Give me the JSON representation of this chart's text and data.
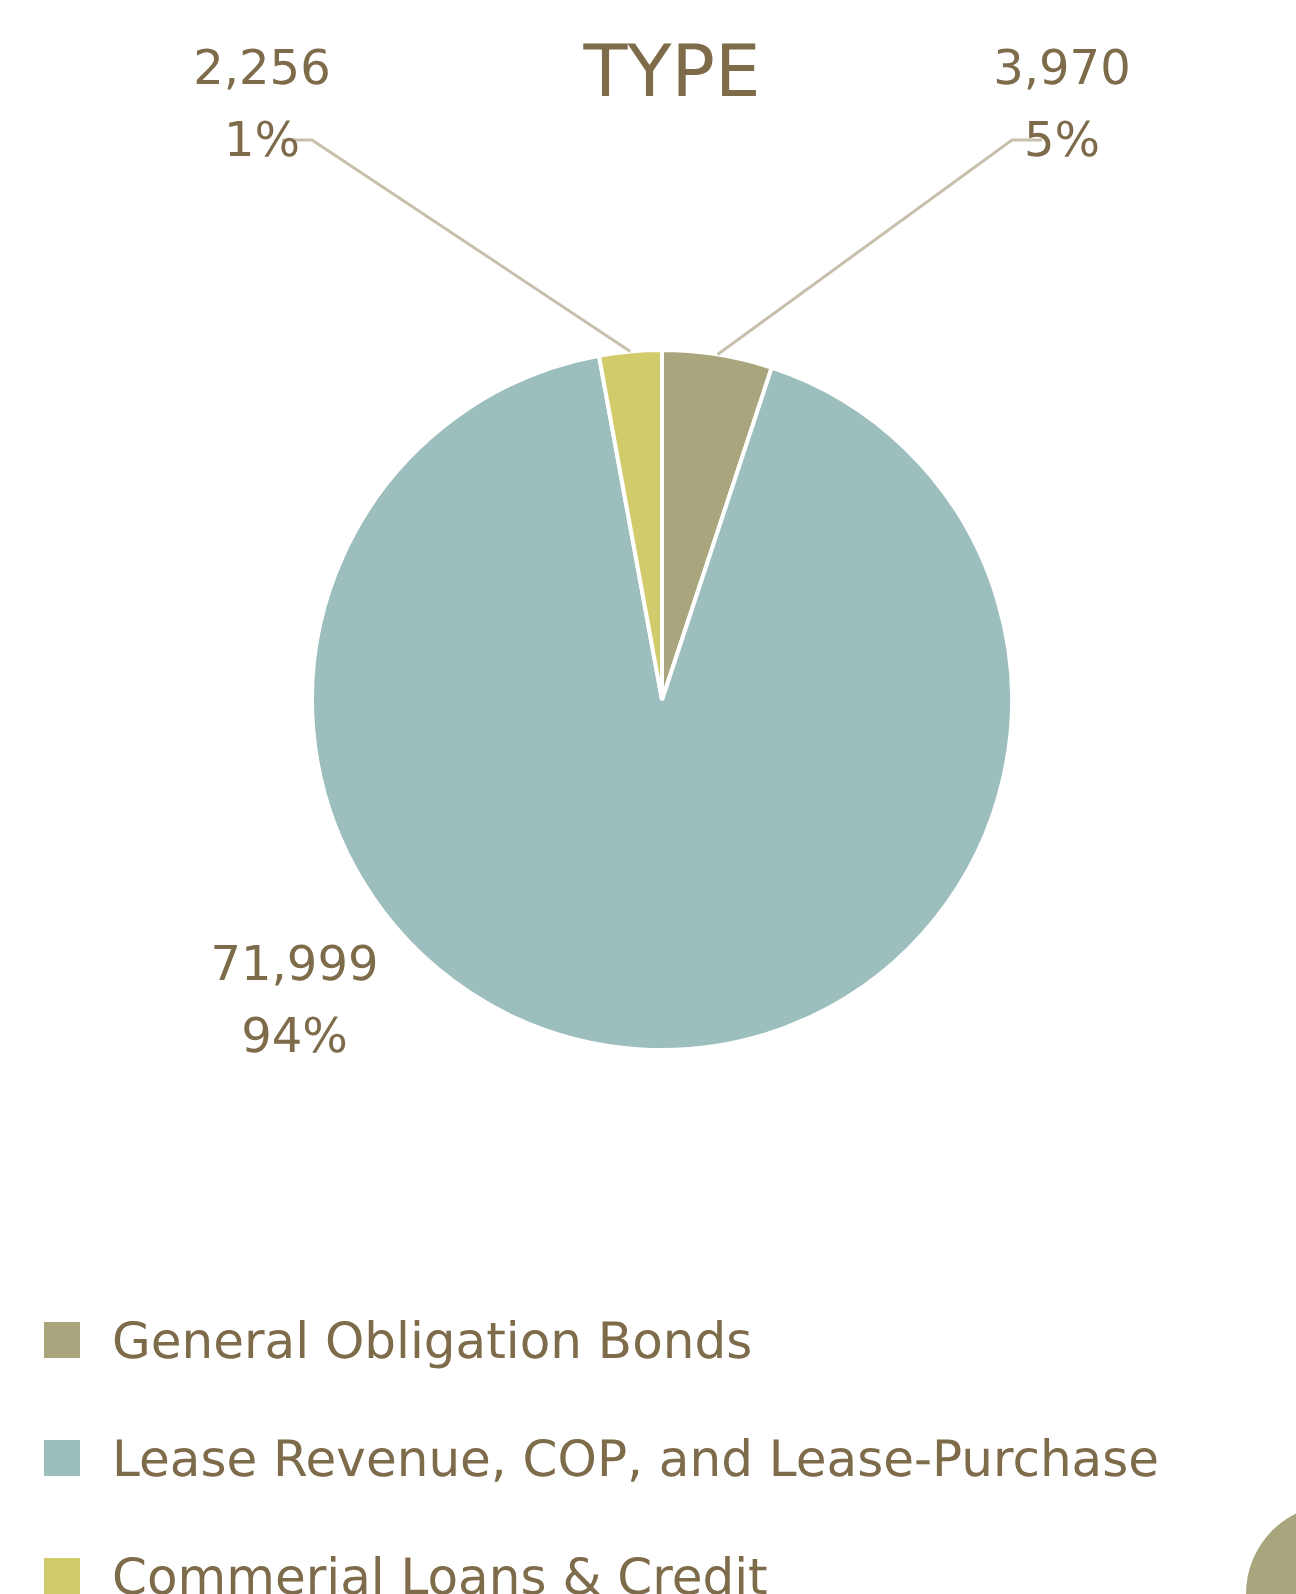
{
  "chart_data": {
    "type": "pie",
    "title": "TYPE",
    "categories": [
      "General Obligation Bonds",
      "Lease Revenue, COP, and Lease-Purchase",
      "Commerial Loans & Credit"
    ],
    "values": [
      3970,
      71999,
      2256
    ],
    "colors": [
      "#a9a57c",
      "#9cbebd",
      "#d2cb6c"
    ],
    "value_labels": [
      "3,970\n5%",
      "71,999\n94%",
      "2,256\n1%"
    ],
    "legend": "bottom"
  }
}
